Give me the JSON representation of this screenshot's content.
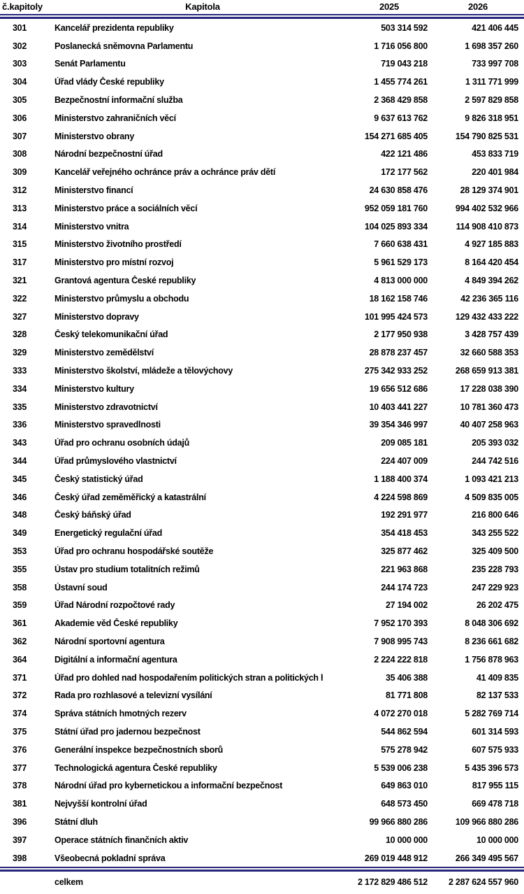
{
  "colors": {
    "rule_navy": "#26267b",
    "text": "#000000"
  },
  "table": {
    "headers": {
      "col_number": "č.kapitoly",
      "col_name": "Kapitola",
      "col_2025": "2025",
      "col_2026": "2026"
    },
    "rows": [
      {
        "number": "301",
        "name": "Kancelář prezidenta republiky",
        "y2025": "503 314 592",
        "y2026": "421 406 445"
      },
      {
        "number": "302",
        "name": "Poslanecká sněmovna Parlamentu",
        "y2025": "1 716 056 800",
        "y2026": "1 698 357 260"
      },
      {
        "number": "303",
        "name": "Senát Parlamentu",
        "y2025": "719 043 218",
        "y2026": "733 997 708"
      },
      {
        "number": "304",
        "name": "Úřad vlády České republiky",
        "y2025": "1 455 774 261",
        "y2026": "1 311 771 999"
      },
      {
        "number": "305",
        "name": "Bezpečnostní informační služba",
        "y2025": "2 368 429 858",
        "y2026": "2 597 829 858"
      },
      {
        "number": "306",
        "name": "Ministerstvo zahraničních věcí",
        "y2025": "9 637 613 762",
        "y2026": "9 826 318 951"
      },
      {
        "number": "307",
        "name": "Ministerstvo obrany",
        "y2025": "154 271 685 405",
        "y2026": "154 790 825 531"
      },
      {
        "number": "308",
        "name": "Národní bezpečnostní úřad",
        "y2025": "422 121 486",
        "y2026": "453 833 719"
      },
      {
        "number": "309",
        "name": "Kancelář veřejného ochránce práv a ochránce práv dětí",
        "y2025": "172 177 562",
        "y2026": "220 401 984"
      },
      {
        "number": "312",
        "name": "Ministerstvo financí",
        "y2025": "24 630 858 476",
        "y2026": "28 129 374 901"
      },
      {
        "number": "313",
        "name": "Ministerstvo práce a sociálních věcí",
        "y2025": "952 059 181 760",
        "y2026": "994 402 532 966"
      },
      {
        "number": "314",
        "name": "Ministerstvo vnitra",
        "y2025": "104 025 893 334",
        "y2026": "114 908 410 873"
      },
      {
        "number": "315",
        "name": "Ministerstvo životního prostředí",
        "y2025": "7 660 638 431",
        "y2026": "4 927 185 883"
      },
      {
        "number": "317",
        "name": "Ministerstvo pro místní rozvoj",
        "y2025": "5 961 529 173",
        "y2026": "8 164 420 454"
      },
      {
        "number": "321",
        "name": "Grantová agentura České republiky",
        "y2025": "4 813 000 000",
        "y2026": "4 849 394 262"
      },
      {
        "number": "322",
        "name": "Ministerstvo průmyslu a obchodu",
        "y2025": "18 162 158 746",
        "y2026": "42 236 365 116"
      },
      {
        "number": "327",
        "name": "Ministerstvo dopravy",
        "y2025": "101 995 424 573",
        "y2026": "129 432 433 222"
      },
      {
        "number": "328",
        "name": "Český telekomunikační úřad",
        "y2025": "2 177 950 938",
        "y2026": "3 428 757 439"
      },
      {
        "number": "329",
        "name": "Ministerstvo zemědělství",
        "y2025": "28 878 237 457",
        "y2026": "32 660 588 353"
      },
      {
        "number": "333",
        "name": "Ministerstvo školství, mládeže a tělovýchovy",
        "y2025": "275 342 933 252",
        "y2026": "268 659 913 381"
      },
      {
        "number": "334",
        "name": "Ministerstvo kultury",
        "y2025": "19 656 512 686",
        "y2026": "17 228 038 390"
      },
      {
        "number": "335",
        "name": "Ministerstvo zdravotnictví",
        "y2025": "10 403 441 227",
        "y2026": "10 781 360 473"
      },
      {
        "number": "336",
        "name": "Ministerstvo spravedlnosti",
        "y2025": "39 354 346 997",
        "y2026": "40 407 258 963"
      },
      {
        "number": "343",
        "name": "Úřad pro ochranu osobních údajů",
        "y2025": "209 085 181",
        "y2026": "205 393 032"
      },
      {
        "number": "344",
        "name": "Úřad průmyslového vlastnictví",
        "y2025": "224 407 009",
        "y2026": "244 742 516"
      },
      {
        "number": "345",
        "name": "Český statistický úřad",
        "y2025": "1 188 400 374",
        "y2026": "1 093 421 213"
      },
      {
        "number": "346",
        "name": "Český úřad zeměměřický a katastrální",
        "y2025": "4 224 598 869",
        "y2026": "4 509 835 005"
      },
      {
        "number": "348",
        "name": "Český báňský úřad",
        "y2025": "192 291 977",
        "y2026": "216 800 646"
      },
      {
        "number": "349",
        "name": "Energetický regulační úřad",
        "y2025": "354 418 453",
        "y2026": "343 255 522"
      },
      {
        "number": "353",
        "name": "Úřad pro ochranu hospodářské soutěže",
        "y2025": "325 877 462",
        "y2026": "325 409 500"
      },
      {
        "number": "355",
        "name": "Ústav pro studium totalitních režimů",
        "y2025": "221 963 868",
        "y2026": "235 228 793"
      },
      {
        "number": "358",
        "name": "Ústavní soud",
        "y2025": "244 174 723",
        "y2026": "247 229 923"
      },
      {
        "number": "359",
        "name": "Úřad Národní rozpočtové rady",
        "y2025": "27 194 002",
        "y2026": "26 202 475"
      },
      {
        "number": "361",
        "name": "Akademie věd České republiky",
        "y2025": "7 952 170 393",
        "y2026": "8 048 306 692"
      },
      {
        "number": "362",
        "name": "Národní sportovní agentura",
        "y2025": "7 908 995 743",
        "y2026": "8 236 661 682"
      },
      {
        "number": "364",
        "name": "Digitální a informační agentura",
        "y2025": "2 224 222 818",
        "y2026": "1 756 878 963"
      },
      {
        "number": "371",
        "name": "Úřad pro dohled nad hospodařením politických stran a politických hnutí",
        "y2025": "35 406 388",
        "y2026": "41 409 835"
      },
      {
        "number": "372",
        "name": "Rada pro rozhlasové a televizní vysílání",
        "y2025": "81 771 808",
        "y2026": "82 137 533"
      },
      {
        "number": "374",
        "name": "Správa státních hmotných rezerv",
        "y2025": "4 072 270 018",
        "y2026": "5 282 769 714"
      },
      {
        "number": "375",
        "name": "Státní úřad pro jadernou bezpečnost",
        "y2025": "544 862 594",
        "y2026": "601 314 593"
      },
      {
        "number": "376",
        "name": "Generální inspekce bezpečnostních sborů",
        "y2025": "575 278 942",
        "y2026": "607 575 933"
      },
      {
        "number": "377",
        "name": "Technologická agentura České republiky",
        "y2025": "5 539 006 238",
        "y2026": "5 435 396 573"
      },
      {
        "number": "378",
        "name": "Národní úřad pro kybernetickou a informační bezpečnost",
        "y2025": "649 863 010",
        "y2026": "817 955 115"
      },
      {
        "number": "381",
        "name": "Nejvyšší kontrolní úřad",
        "y2025": "648 573 450",
        "y2026": "669 478 718"
      },
      {
        "number": "396",
        "name": "Státní dluh",
        "y2025": "99 966 880 286",
        "y2026": "109 966 880 286"
      },
      {
        "number": "397",
        "name": "Operace státních finančních aktiv",
        "y2025": "10 000 000",
        "y2026": "10 000 000"
      },
      {
        "number": "398",
        "name": "Všeobecná pokladní správa",
        "y2025": "269 019 448 912",
        "y2026": "266 349 495 567"
      }
    ],
    "footer": {
      "label": "celkem",
      "y2025": "2 172 829 486 512",
      "y2026": "2 287 624 557 960"
    }
  }
}
